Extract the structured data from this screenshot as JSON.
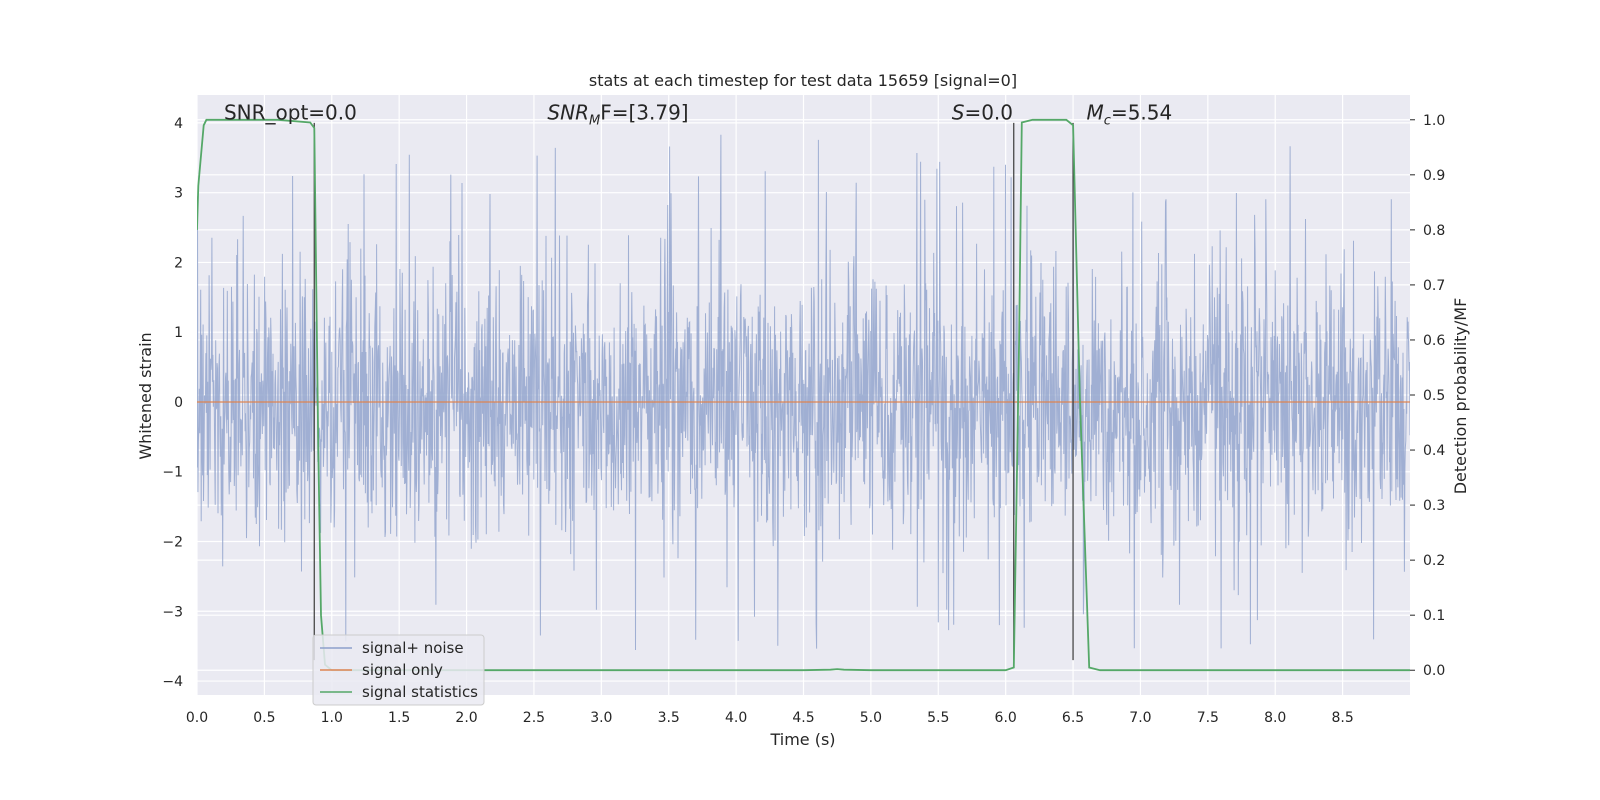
{
  "chart_data": {
    "type": "line",
    "title": "stats at each timestep for test data 15659 [signal=0]",
    "xlabel": "Time (s)",
    "ylabel_left": "Whitened strain",
    "ylabel_right": "Detection probability/MF",
    "xlim": [
      0.0,
      9.0
    ],
    "ylim_left": [
      -4.2,
      4.4
    ],
    "ylim_right": [
      -0.045,
      1.045
    ],
    "x_ticks": [
      "0.0",
      "0.5",
      "1.0",
      "1.5",
      "2.0",
      "2.5",
      "3.0",
      "3.5",
      "4.0",
      "4.5",
      "5.0",
      "5.5",
      "6.0",
      "6.5",
      "7.0",
      "7.5",
      "8.0",
      "8.5"
    ],
    "y_ticks_left": [
      "−4",
      "−3",
      "−2",
      "−1",
      "0",
      "1",
      "2",
      "3",
      "4"
    ],
    "y_ticks_right": [
      "0.0",
      "0.1",
      "0.2",
      "0.3",
      "0.4",
      "0.5",
      "0.6",
      "0.7",
      "0.8",
      "0.9",
      "1.0"
    ],
    "grid": true,
    "legend_position": "lower-left",
    "annotations": [
      {
        "label": "SNR_opt=0.0",
        "x": 0.2,
        "y": 4.15
      },
      {
        "label_main": "SNR",
        "label_sub": "M",
        "label_rest": "F=[3.79]",
        "x": 2.6,
        "y": 4.15
      },
      {
        "label_main": "S",
        "label_rest": "=0.0",
        "x": 5.6,
        "y": 4.15
      },
      {
        "label_main": "M",
        "label_sub": "c",
        "label_rest": "=5.54",
        "x": 6.6,
        "y": 4.15
      }
    ],
    "vlines": [
      {
        "x": 0.87,
        "y": [
          -3.7,
          4.0
        ]
      },
      {
        "x": 6.06,
        "y": [
          -3.7,
          4.0
        ]
      },
      {
        "x": 6.5,
        "y": [
          -3.7,
          4.0
        ]
      }
    ],
    "series": [
      {
        "name": "signal+ noise",
        "axis": "left",
        "color": "#8da0cb",
        "type": "noise",
        "sample_rate_hz": 2048,
        "band_min": -1.5,
        "band_max": 1.6,
        "peaks_max": [
          4.0,
          3.95,
          3.9,
          3.8,
          3.6,
          3.5,
          3.4,
          3.3,
          3.3,
          3.3,
          3.3
        ],
        "peaks_min": [
          -3.3,
          -3.4,
          -3.5,
          -3.6,
          -3.7,
          -3.75
        ]
      },
      {
        "name": "signal only",
        "axis": "left",
        "color": "#dd8452",
        "x": [
          0.0,
          9.0
        ],
        "y": [
          0.0,
          0.0
        ]
      },
      {
        "name": "signal statistics",
        "axis": "right",
        "color": "#55a868",
        "x": [
          0.0,
          0.01,
          0.05,
          0.07,
          0.1,
          0.3,
          0.6,
          0.84,
          0.87,
          0.9,
          0.92,
          0.95,
          1.0,
          2.0,
          3.0,
          4.0,
          4.5,
          4.7,
          4.75,
          4.8,
          5.0,
          6.0,
          6.06,
          6.1,
          6.12,
          6.2,
          6.45,
          6.5,
          6.55,
          6.62,
          6.7,
          7.0,
          8.0,
          9.0
        ],
        "y": [
          0.8,
          0.88,
          0.99,
          1.0,
          1.0,
          1.0,
          1.0,
          0.995,
          0.985,
          0.4,
          0.1,
          0.01,
          0.0,
          0.0,
          0.0,
          0.0,
          0.0,
          0.001,
          0.002,
          0.001,
          0.0,
          0.0,
          0.005,
          0.6,
          0.995,
          1.0,
          1.0,
          0.99,
          0.5,
          0.005,
          0.0,
          0.0,
          0.0,
          0.0
        ]
      }
    ]
  }
}
